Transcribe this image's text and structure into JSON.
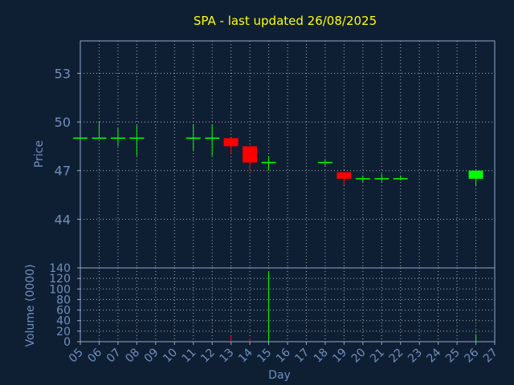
{
  "chart_data": {
    "type": "candlestick",
    "title": "SPA - last updated 26/08/2025",
    "xlabel": "Day",
    "x_ticks": [
      "05",
      "06",
      "07",
      "08",
      "09",
      "10",
      "11",
      "12",
      "13",
      "14",
      "15",
      "16",
      "17",
      "18",
      "19",
      "20",
      "21",
      "22",
      "23",
      "24",
      "25",
      "26",
      "27"
    ],
    "price_panel": {
      "ylabel": "Price",
      "ylim": [
        41.0,
        55.0
      ],
      "y_ticks": [
        "44",
        "47",
        "50",
        "53"
      ],
      "candles": [
        {
          "day": "05",
          "open": 49.0,
          "high": 49.0,
          "low": 49.0,
          "close": 49.0
        },
        {
          "day": "06",
          "open": 49.0,
          "high": 50.0,
          "low": 49.0,
          "close": 49.0
        },
        {
          "day": "07",
          "open": 49.0,
          "high": 49.6,
          "low": 48.5,
          "close": 49.0
        },
        {
          "day": "08",
          "open": 49.0,
          "high": 49.8,
          "low": 47.9,
          "close": 49.0
        },
        {
          "day": "11",
          "open": 49.0,
          "high": 49.8,
          "low": 48.2,
          "close": 49.0
        },
        {
          "day": "12",
          "open": 49.0,
          "high": 49.8,
          "low": 47.9,
          "close": 49.0
        },
        {
          "day": "13",
          "open": 49.0,
          "high": 49.0,
          "low": 48.0,
          "close": 48.5
        },
        {
          "day": "14",
          "open": 48.5,
          "high": 48.5,
          "low": 47.0,
          "close": 47.5
        },
        {
          "day": "15",
          "open": 47.5,
          "high": 47.9,
          "low": 47.0,
          "close": 47.5
        },
        {
          "day": "18",
          "open": 47.5,
          "high": 47.7,
          "low": 47.3,
          "close": 47.5
        },
        {
          "day": "19",
          "open": 46.9,
          "high": 46.9,
          "low": 46.1,
          "close": 46.5
        },
        {
          "day": "20",
          "open": 46.5,
          "high": 46.7,
          "low": 46.3,
          "close": 46.5
        },
        {
          "day": "21",
          "open": 46.5,
          "high": 46.8,
          "low": 46.3,
          "close": 46.5
        },
        {
          "day": "22",
          "open": 46.5,
          "high": 46.7,
          "low": 46.4,
          "close": 46.5
        },
        {
          "day": "26",
          "open": 46.5,
          "high": 47.0,
          "low": 46.1,
          "close": 47.0
        }
      ]
    },
    "volume_panel": {
      "ylabel": "Volume (0000)",
      "ylim": [
        0,
        140
      ],
      "y_ticks": [
        "0",
        "20",
        "40",
        "60",
        "80",
        "100",
        "120",
        "140"
      ],
      "bars": [
        {
          "day": "06",
          "value": 2,
          "dir": "up"
        },
        {
          "day": "07",
          "value": 1,
          "dir": "up"
        },
        {
          "day": "13",
          "value": 12,
          "dir": "down"
        },
        {
          "day": "14",
          "value": 6,
          "dir": "down"
        },
        {
          "day": "15",
          "value": 134,
          "dir": "up"
        },
        {
          "day": "26",
          "value": 14,
          "dir": "up"
        }
      ]
    },
    "grid": true,
    "colors": {
      "background": "#0f1f33",
      "axis": "#8fa8c8",
      "grid": "#b0b0b0",
      "title": "#ffff00",
      "label": "#6f8fbf",
      "up": "#00ff00",
      "down": "#ff0000"
    }
  }
}
